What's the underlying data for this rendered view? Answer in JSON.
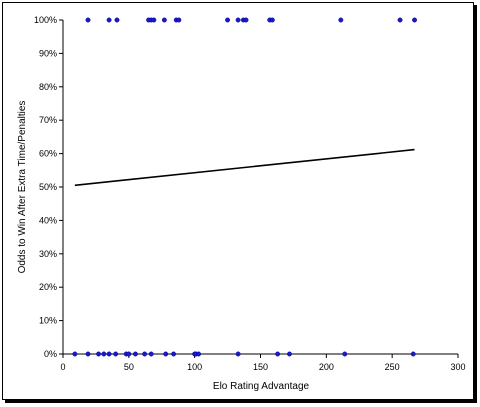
{
  "chart_data": {
    "type": "scatter",
    "title": "",
    "xlabel": "Elo Rating Advantage",
    "ylabel": "Odds to Win After Extra Time/Penalties",
    "xlim": [
      0,
      300
    ],
    "ylim": [
      0,
      1
    ],
    "x_ticks": [
      0,
      50,
      100,
      150,
      200,
      250,
      300
    ],
    "x_tick_labels": [
      "0",
      "50",
      "100",
      "150",
      "200",
      "250",
      "300"
    ],
    "y_ticks": [
      0,
      0.1,
      0.2,
      0.3,
      0.4,
      0.5,
      0.6,
      0.7,
      0.8,
      0.9,
      1.0
    ],
    "y_tick_labels": [
      "0%",
      "10%",
      "20%",
      "30%",
      "40%",
      "50%",
      "60%",
      "70%",
      "80%",
      "90%",
      "100%"
    ],
    "grid": false,
    "legend": "none",
    "colors": {
      "points": "#1a1ac8",
      "trend": "#000000",
      "axis": "#000000"
    },
    "series": [
      {
        "kind": "points",
        "points": [
          {
            "x": 19,
            "y": 1
          },
          {
            "x": 35,
            "y": 1
          },
          {
            "x": 41,
            "y": 1
          },
          {
            "x": 65,
            "y": 1
          },
          {
            "x": 67,
            "y": 1
          },
          {
            "x": 69,
            "y": 1
          },
          {
            "x": 77,
            "y": 1
          },
          {
            "x": 86,
            "y": 1
          },
          {
            "x": 88,
            "y": 1
          },
          {
            "x": 125,
            "y": 1
          },
          {
            "x": 133,
            "y": 1
          },
          {
            "x": 137,
            "y": 1
          },
          {
            "x": 139,
            "y": 1
          },
          {
            "x": 157,
            "y": 1
          },
          {
            "x": 159,
            "y": 1
          },
          {
            "x": 211,
            "y": 1
          },
          {
            "x": 256,
            "y": 1
          },
          {
            "x": 267,
            "y": 1
          },
          {
            "x": 9,
            "y": 0
          },
          {
            "x": 19,
            "y": 0
          },
          {
            "x": 27,
            "y": 0
          },
          {
            "x": 31,
            "y": 0
          },
          {
            "x": 35,
            "y": 0
          },
          {
            "x": 40,
            "y": 0
          },
          {
            "x": 48,
            "y": 0
          },
          {
            "x": 50,
            "y": 0
          },
          {
            "x": 55,
            "y": 0
          },
          {
            "x": 62,
            "y": 0
          },
          {
            "x": 67,
            "y": 0
          },
          {
            "x": 78,
            "y": 0
          },
          {
            "x": 84,
            "y": 0
          },
          {
            "x": 100,
            "y": 0
          },
          {
            "x": 101,
            "y": 0
          },
          {
            "x": 103,
            "y": 0
          },
          {
            "x": 133,
            "y": 0
          },
          {
            "x": 163,
            "y": 0
          },
          {
            "x": 172,
            "y": 0
          },
          {
            "x": 214,
            "y": 0
          },
          {
            "x": 266,
            "y": 0
          }
        ]
      },
      {
        "kind": "trendline",
        "points": [
          {
            "x": 9,
            "y": 0.505
          },
          {
            "x": 267,
            "y": 0.612
          }
        ]
      }
    ]
  }
}
